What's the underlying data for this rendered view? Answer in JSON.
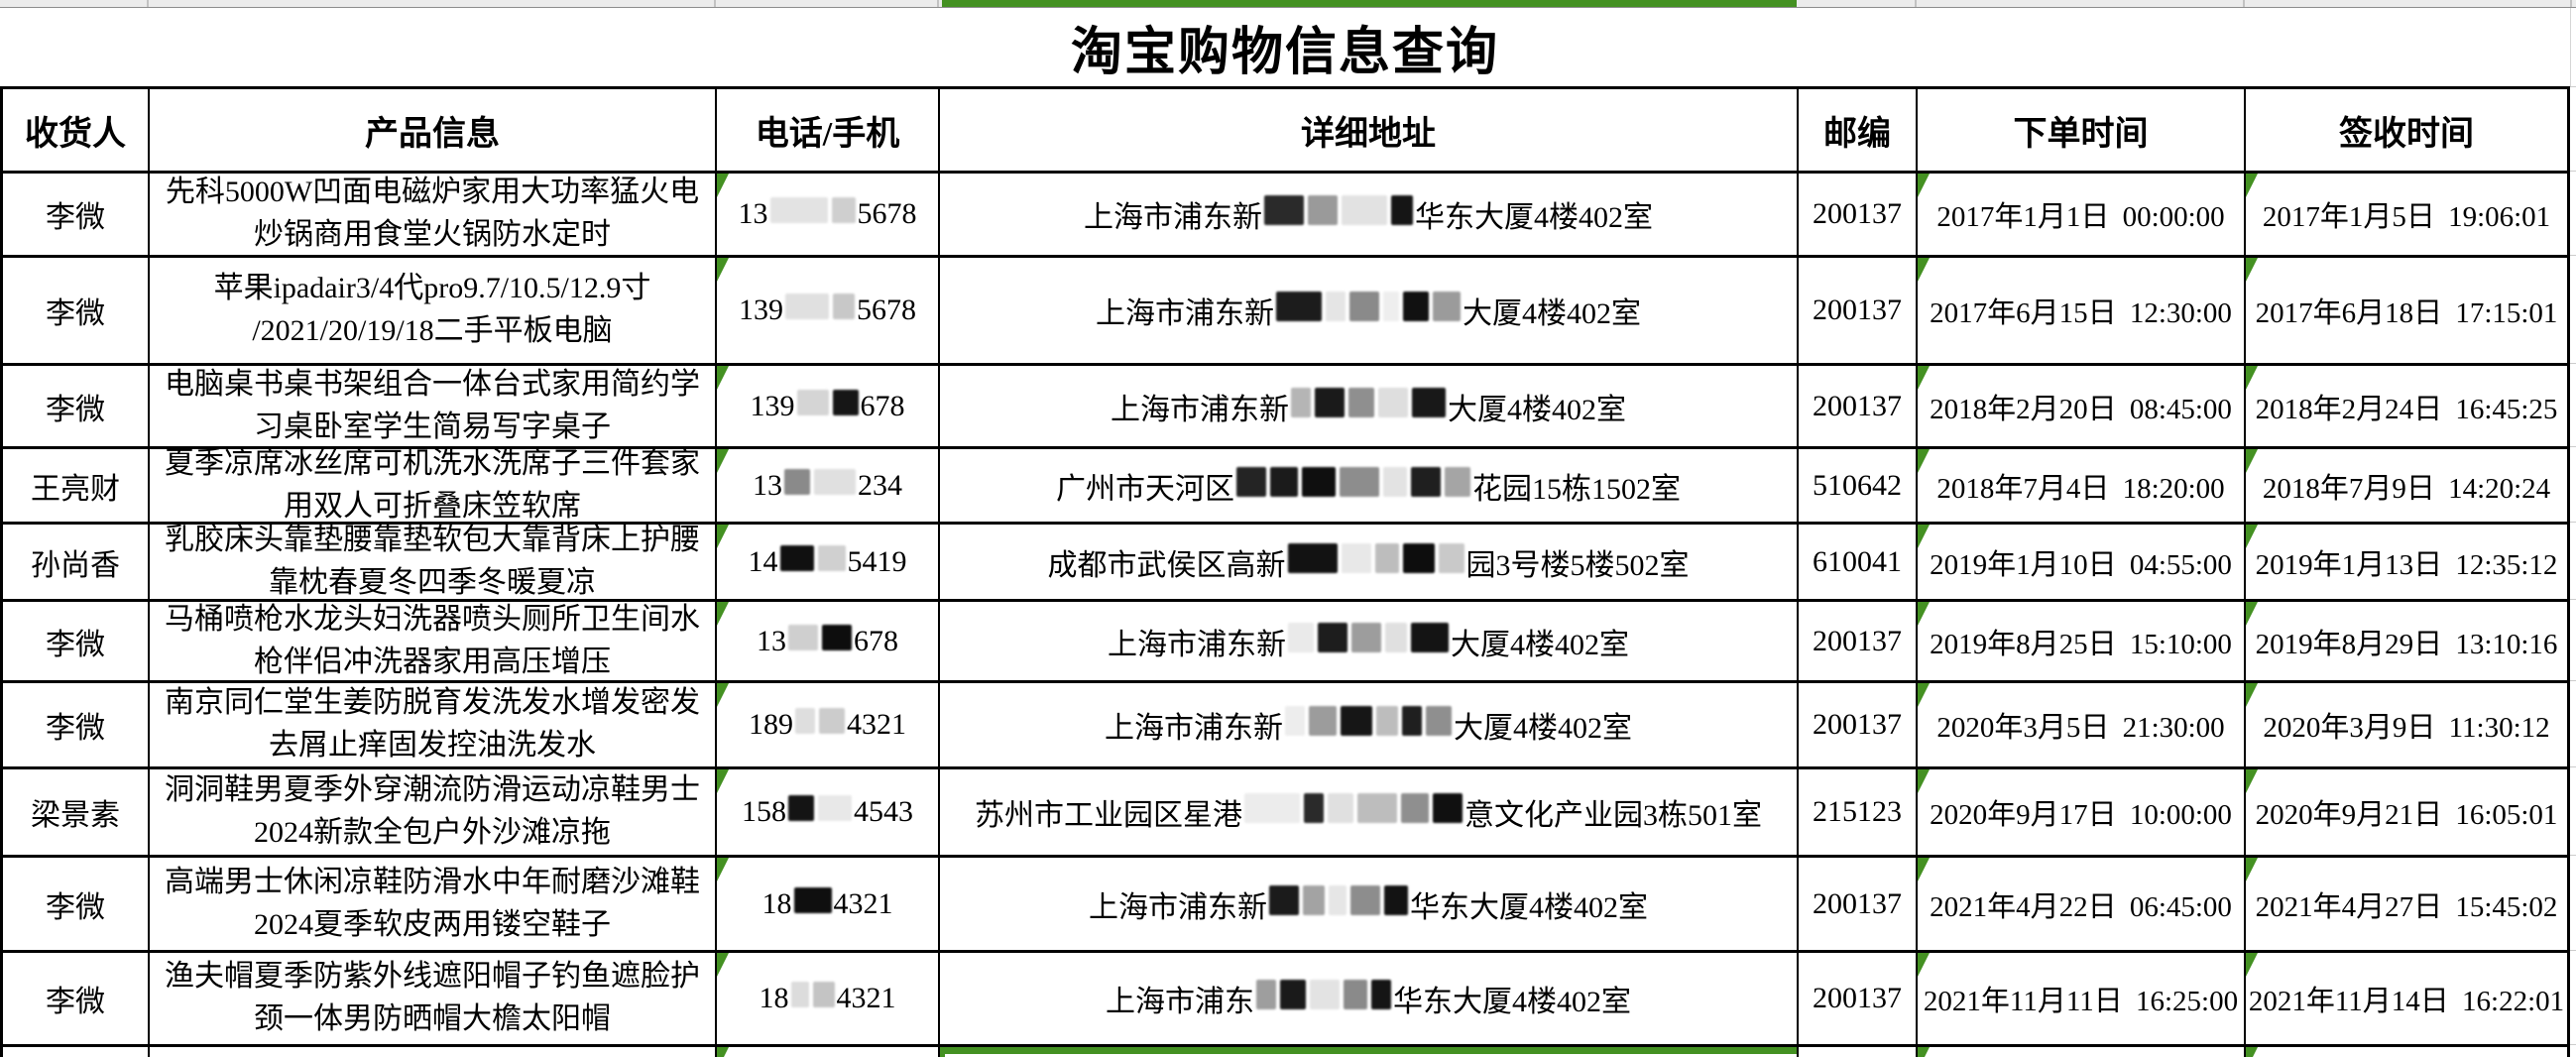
{
  "app": {
    "title": "淘宝购物信息查询"
  },
  "colors": {
    "highlight_green": "#449122",
    "strip_gray": "#ececec"
  },
  "icons": {
    "comment_marker": "green-corner-triangle"
  },
  "table": {
    "headers": [
      "收货人",
      "产品信息",
      "电话/手机",
      "详细地址",
      "邮编",
      "下单时间",
      "签收时间"
    ],
    "rows": [
      {
        "recipient": "李微",
        "product": "先科5000W凹面电磁炉家用大功率猛火电炒锅商用食堂火锅防水定时",
        "phone_prefix": "13",
        "phone_suffix": "5678",
        "phone_red": [
          {
            "w": 58,
            "c": "#e3e3e3"
          },
          {
            "w": 24,
            "c": "#cfcfcf"
          }
        ],
        "addr_prefix": "上海市浦东新",
        "addr_suffix": "华东大厦4楼402室",
        "addr_red": [
          {
            "w": 40,
            "c": "#2a2a2a"
          },
          {
            "w": 30,
            "c": "#9a9a9a"
          },
          {
            "w": 46,
            "c": "#e2e2e2"
          },
          {
            "w": 22,
            "c": "#151515"
          }
        ],
        "zip": "200137",
        "order_time": "2017年1月1日 00:00:00",
        "sign_time": "2017年1月5日 19:06:01"
      },
      {
        "recipient": "李微",
        "product": "苹果ipadair3/4代pro9.7/10.5/12.9寸 /2021/20/19/18二手平板电脑",
        "phone_prefix": "139",
        "phone_suffix": "5678",
        "phone_red": [
          {
            "w": 44,
            "c": "#e0e0e0"
          },
          {
            "w": 22,
            "c": "#c8c8c8"
          }
        ],
        "addr_prefix": "上海市浦东新",
        "addr_suffix": "大厦4楼402室",
        "addr_red": [
          {
            "w": 46,
            "c": "#1c1c1c"
          },
          {
            "w": 20,
            "c": "#e5e5e5"
          },
          {
            "w": 30,
            "c": "#8a8a8a"
          },
          {
            "w": 16,
            "c": "#eeeeee"
          },
          {
            "w": 26,
            "c": "#111111"
          },
          {
            "w": 28,
            "c": "#9b9b9b"
          }
        ],
        "zip": "200137",
        "order_time": "2017年6月15日 12:30:00",
        "sign_time": "2017年6月18日 17:15:01"
      },
      {
        "recipient": "李微",
        "product": "电脑桌书桌书架组合一体台式家用简约学习桌卧室学生简易写字桌子",
        "phone_prefix": "139",
        "phone_suffix": "678",
        "phone_red": [
          {
            "w": 32,
            "c": "#d5d5d5"
          },
          {
            "w": 26,
            "c": "#161616"
          }
        ],
        "addr_prefix": "上海市浦东新",
        "addr_suffix": "大厦4楼402室",
        "addr_red": [
          {
            "w": 20,
            "c": "#b5b5b5"
          },
          {
            "w": 30,
            "c": "#1a1a1a"
          },
          {
            "w": 26,
            "c": "#8f8f8f"
          },
          {
            "w": 30,
            "c": "#dedede"
          },
          {
            "w": 34,
            "c": "#181818"
          }
        ],
        "zip": "200137",
        "order_time": "2018年2月20日 08:45:00",
        "sign_time": "2018年2月24日 16:45:25"
      },
      {
        "recipient": "王亮财",
        "product": "夏季凉席冰丝席可机洗水洗席子三件套家用双人可折叠床笠软席",
        "phone_prefix": "13",
        "phone_suffix": "234",
        "phone_red": [
          {
            "w": 26,
            "c": "#8a8a8a"
          },
          {
            "w": 42,
            "c": "#e0e0e0"
          }
        ],
        "addr_prefix": "广州市天河区",
        "addr_suffix": "花园15栋1502室",
        "addr_red": [
          {
            "w": 30,
            "c": "#242424"
          },
          {
            "w": 28,
            "c": "#1b1b1b"
          },
          {
            "w": 34,
            "c": "#0f0f0f"
          },
          {
            "w": 40,
            "c": "#8d8d8d"
          },
          {
            "w": 24,
            "c": "#e3e3e3"
          },
          {
            "w": 30,
            "c": "#1f1f1f"
          },
          {
            "w": 26,
            "c": "#a5a5a5"
          }
        ],
        "zip": "510642",
        "order_time": "2018年7月4日 18:20:00",
        "sign_time": "2018年7月9日 14:20:24"
      },
      {
        "recipient": "孙尚香",
        "product": "乳胶床头靠垫腰靠垫软包大靠背床上护腰靠枕春夏冬四季冬暖夏凉",
        "phone_prefix": "14",
        "phone_suffix": "5419",
        "phone_red": [
          {
            "w": 34,
            "c": "#101010"
          },
          {
            "w": 28,
            "c": "#d0d0d0"
          }
        ],
        "addr_prefix": "成都市武侯区高新",
        "addr_suffix": "园3号楼5楼502室",
        "addr_red": [
          {
            "w": 50,
            "c": "#121212"
          },
          {
            "w": 30,
            "c": "#e8e8e8"
          },
          {
            "w": 24,
            "c": "#bdbdbd"
          },
          {
            "w": 32,
            "c": "#0d0d0d"
          },
          {
            "w": 26,
            "c": "#c9c9c9"
          }
        ],
        "zip": "610041",
        "order_time": "2019年1月10日 04:55:00",
        "sign_time": "2019年1月13日 12:35:12"
      },
      {
        "recipient": "李微",
        "product": "马桶喷枪水龙头妇洗器喷头厕所卫生间水枪伴侣冲洗器家用高压增压",
        "phone_prefix": "13",
        "phone_suffix": "678",
        "phone_red": [
          {
            "w": 30,
            "c": "#cfcfcf"
          },
          {
            "w": 30,
            "c": "#0d0d0d"
          }
        ],
        "addr_prefix": "上海市浦东新",
        "addr_suffix": "大厦4楼402室",
        "addr_red": [
          {
            "w": 26,
            "c": "#eaeaea"
          },
          {
            "w": 30,
            "c": "#1d1d1d"
          },
          {
            "w": 30,
            "c": "#9d9d9d"
          },
          {
            "w": 22,
            "c": "#e0e0e0"
          },
          {
            "w": 38,
            "c": "#141414"
          }
        ],
        "zip": "200137",
        "order_time": "2019年8月25日 15:10:00",
        "sign_time": "2019年8月29日 13:10:16"
      },
      {
        "recipient": "李微",
        "product": "南京同仁堂生姜防脱育发洗发水增发密发去屑止痒固发控油洗发水",
        "phone_prefix": "189",
        "phone_suffix": "4321",
        "phone_red": [
          {
            "w": 20,
            "c": "#dedede"
          },
          {
            "w": 26,
            "c": "#cccccc"
          }
        ],
        "addr_prefix": "上海市浦东新",
        "addr_suffix": "大厦4楼402室",
        "addr_red": [
          {
            "w": 20,
            "c": "#ededed"
          },
          {
            "w": 28,
            "c": "#9c9c9c"
          },
          {
            "w": 32,
            "c": "#161616"
          },
          {
            "w": 22,
            "c": "#bdbdbd"
          },
          {
            "w": 20,
            "c": "#1f1f1f"
          },
          {
            "w": 26,
            "c": "#8f8f8f"
          }
        ],
        "zip": "200137",
        "order_time": "2020年3月5日 21:30:00",
        "sign_time": "2020年3月9日 11:30:12"
      },
      {
        "recipient": "梁景素",
        "product": "洞洞鞋男夏季外穿潮流防滑运动凉鞋男士2024新款全包户外沙滩凉拖",
        "phone_prefix": "158",
        "phone_suffix": "4543",
        "phone_red": [
          {
            "w": 26,
            "c": "#141414"
          },
          {
            "w": 34,
            "c": "#e8e8e8"
          }
        ],
        "addr_prefix": "苏州市工业园区星港",
        "addr_suffix": "意文化产业园3栋501室",
        "addr_red": [
          {
            "w": 56,
            "c": "#ececec"
          },
          {
            "w": 20,
            "c": "#2a2a2a"
          },
          {
            "w": 26,
            "c": "#e0e0e0"
          },
          {
            "w": 40,
            "c": "#bdbdbd"
          },
          {
            "w": 28,
            "c": "#8f8f8f"
          },
          {
            "w": 30,
            "c": "#101010"
          }
        ],
        "zip": "215123",
        "order_time": "2020年9月17日 10:00:00",
        "sign_time": "2020年9月21日 16:05:01"
      },
      {
        "recipient": "李微",
        "product": "高端男士休闲凉鞋防滑水中年耐磨沙滩鞋2024夏季软皮两用镂空鞋子",
        "phone_prefix": "18",
        "phone_suffix": "4321",
        "phone_red": [
          {
            "w": 38,
            "c": "#0f0f0f"
          }
        ],
        "addr_prefix": "上海市浦东新",
        "addr_suffix": "华东大厦4楼402室",
        "addr_red": [
          {
            "w": 30,
            "c": "#1b1b1b"
          },
          {
            "w": 22,
            "c": "#a3a3a3"
          },
          {
            "w": 18,
            "c": "#e6e6e6"
          },
          {
            "w": 30,
            "c": "#8d8d8d"
          },
          {
            "w": 24,
            "c": "#131313"
          }
        ],
        "zip": "200137",
        "order_time": "2021年4月22日 06:45:00",
        "sign_time": "2021年4月27日 15:45:02"
      },
      {
        "recipient": "李微",
        "product": "渔夫帽夏季防紫外线遮阳帽子钓鱼遮脸护颈一体男防晒帽大檐太阳帽",
        "phone_prefix": "18",
        "phone_suffix": "4321",
        "phone_red": [
          {
            "w": 18,
            "c": "#dcdcdc"
          },
          {
            "w": 22,
            "c": "#c4c4c4"
          }
        ],
        "addr_prefix": "上海市浦东",
        "addr_suffix": "华东大厦4楼402室",
        "addr_red": [
          {
            "w": 20,
            "c": "#9e9e9e"
          },
          {
            "w": 26,
            "c": "#1a1a1a"
          },
          {
            "w": 30,
            "c": "#e3e3e3"
          },
          {
            "w": 24,
            "c": "#8a8a8a"
          },
          {
            "w": 20,
            "c": "#151515"
          }
        ],
        "zip": "200137",
        "order_time": "2021年11月11日 16:25:00",
        "sign_time": "2021年11月14日 16:22:01"
      }
    ]
  }
}
